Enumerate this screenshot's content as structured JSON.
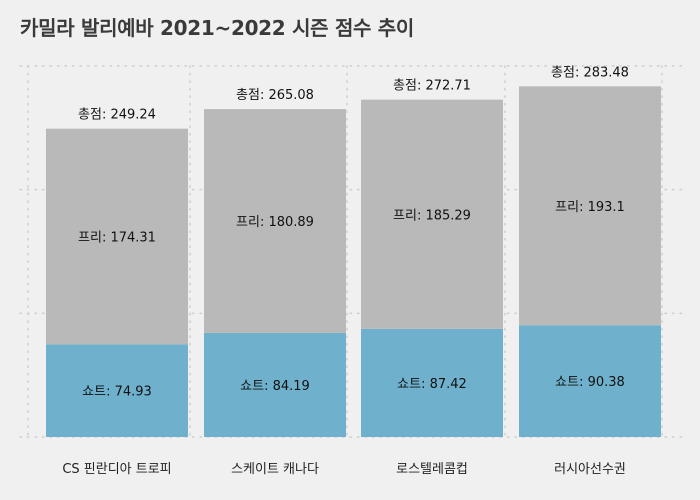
{
  "title": "카밀라 발리예바 2021~2022 시즌 점수 추이",
  "labels": {
    "total_prefix": "총점: ",
    "free_prefix": "프리:  ",
    "short_prefix": "쇼트: "
  },
  "colors": {
    "background": "#f0f0f0",
    "free": "#b9b9b9",
    "short": "#6fb1cc",
    "grid": "#cfcfcf"
  },
  "chart_data": {
    "type": "bar",
    "stacked": true,
    "title": "카밀라 발리예바 2021~2022 시즌 점수 추이",
    "categories": [
      "CS 핀란디아 트로피",
      "스케이트 캐나다",
      "로스텔레콤컵",
      "러시아선수권"
    ],
    "series": [
      {
        "name": "쇼트",
        "values": [
          74.93,
          84.19,
          87.42,
          90.38
        ]
      },
      {
        "name": "프리",
        "values": [
          174.31,
          180.89,
          185.29,
          193.1
        ]
      }
    ],
    "totals": [
      249.24,
      265.08,
      272.71,
      283.48
    ],
    "ylim": [
      0,
      300
    ],
    "grid": true,
    "legend": "none"
  }
}
